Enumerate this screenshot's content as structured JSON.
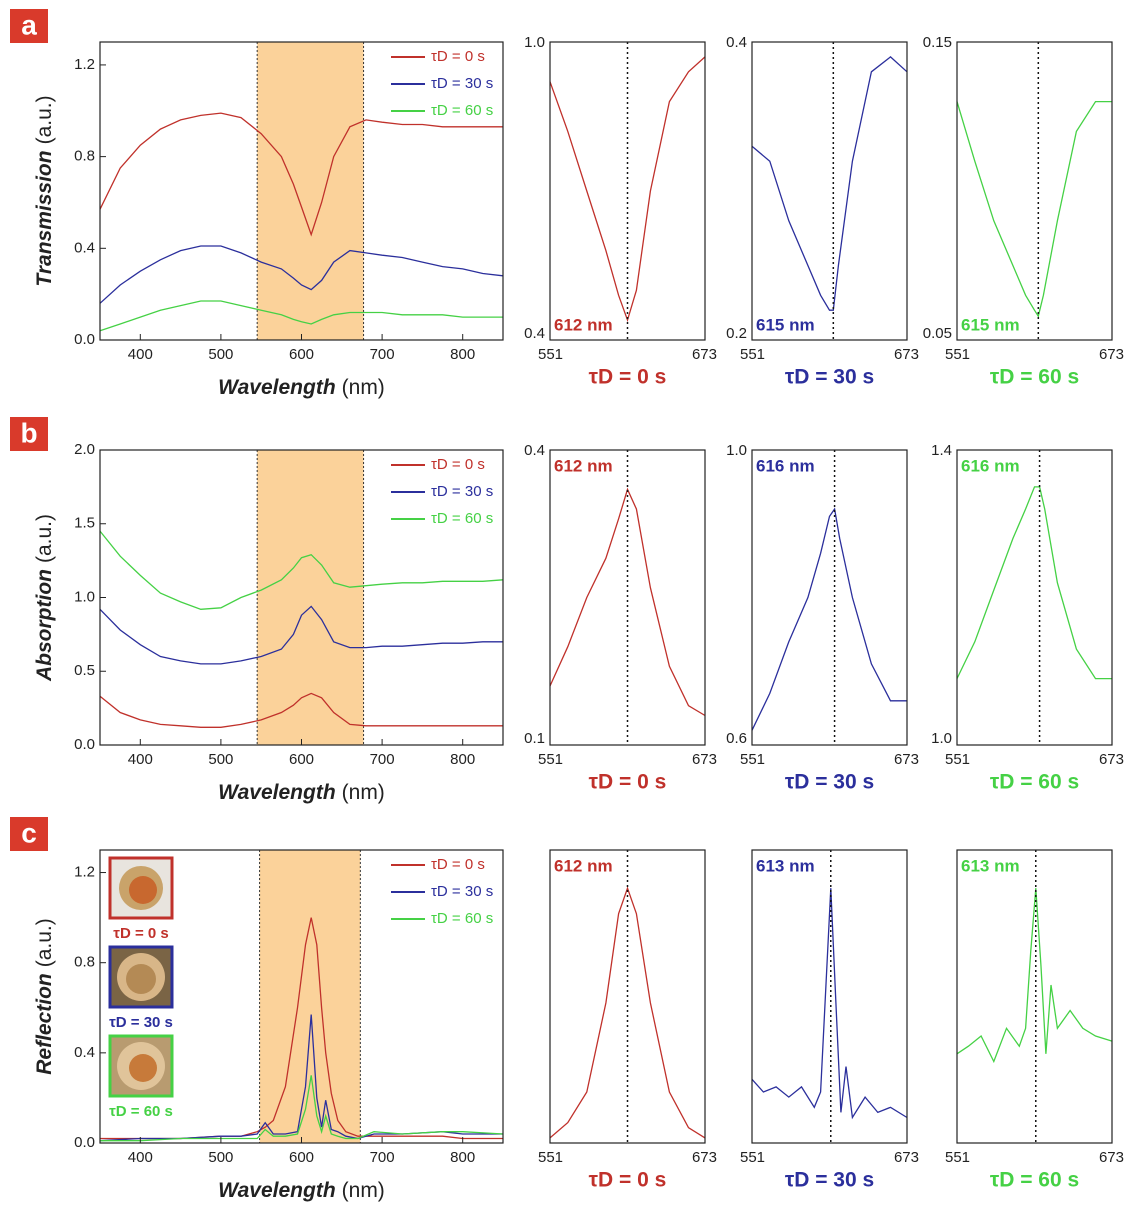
{
  "chart_data": [
    {
      "type": "line",
      "panel": "a",
      "xlabel": "Wavelength",
      "xlabel_unit": "(nm)",
      "ylabel": "Transmission",
      "ylabel_unit": "(a.u.)",
      "xlim": [
        350,
        850
      ],
      "xticks": [
        400,
        500,
        600,
        700,
        800
      ],
      "ylim": [
        0,
        1.3
      ],
      "yticks": [
        {
          "value": 0,
          "label": "0.0"
        },
        0.4,
        0.8,
        1.2
      ],
      "span": [
        545,
        677
      ],
      "x": [
        350,
        375,
        400,
        425,
        450,
        475,
        500,
        525,
        550,
        575,
        590,
        600,
        612,
        625,
        640,
        660,
        680,
        700,
        725,
        750,
        775,
        800,
        825,
        850
      ],
      "series": [
        {
          "name": "τD = 0 s",
          "color": "#c0312b",
          "values": [
            0.57,
            0.75,
            0.85,
            0.92,
            0.96,
            0.98,
            0.99,
            0.97,
            0.9,
            0.8,
            0.68,
            0.58,
            0.46,
            0.6,
            0.8,
            0.93,
            0.96,
            0.95,
            0.94,
            0.94,
            0.93,
            0.93,
            0.93,
            0.93
          ]
        },
        {
          "name": "τD = 30 s",
          "color": "#2b2f9c",
          "values": [
            0.16,
            0.24,
            0.3,
            0.35,
            0.39,
            0.41,
            0.41,
            0.38,
            0.34,
            0.31,
            0.27,
            0.24,
            0.22,
            0.26,
            0.34,
            0.39,
            0.38,
            0.37,
            0.36,
            0.34,
            0.32,
            0.31,
            0.29,
            0.28
          ]
        },
        {
          "name": "τD = 60 s",
          "color": "#45d145",
          "values": [
            0.04,
            0.07,
            0.1,
            0.13,
            0.15,
            0.17,
            0.17,
            0.15,
            0.13,
            0.11,
            0.09,
            0.08,
            0.07,
            0.09,
            0.11,
            0.12,
            0.12,
            0.12,
            0.11,
            0.11,
            0.11,
            0.1,
            0.1,
            0.1
          ]
        }
      ]
    },
    {
      "type": "line",
      "xlim": [
        551,
        673
      ],
      "xticks": [
        551,
        673
      ],
      "ylim": [
        0.4,
        1.0
      ],
      "yticks": [
        0.4,
        {
          "value": 1.0,
          "label": "1.0"
        }
      ],
      "peak": 612,
      "annotation": "612 nm",
      "annotation_pos": "bottom",
      "x": [
        551,
        565,
        580,
        595,
        605,
        612,
        619,
        630,
        645,
        660,
        673
      ],
      "series": [
        {
          "name": "τD = 0 s",
          "color": "#c0312b",
          "values": [
            0.92,
            0.82,
            0.7,
            0.58,
            0.49,
            0.44,
            0.5,
            0.7,
            0.88,
            0.94,
            0.97
          ]
        }
      ]
    },
    {
      "type": "line",
      "xlim": [
        551,
        673
      ],
      "xticks": [
        551,
        673
      ],
      "ylim": [
        0.2,
        0.4
      ],
      "yticks": [
        0.2,
        0.4
      ],
      "peak": 615,
      "annotation": "615 nm",
      "annotation_pos": "bottom",
      "x": [
        551,
        565,
        580,
        595,
        605,
        612,
        615,
        619,
        630,
        645,
        660,
        673
      ],
      "series": [
        {
          "name": "τD = 30 s",
          "color": "#2b2f9c",
          "values": [
            0.33,
            0.32,
            0.28,
            0.25,
            0.23,
            0.22,
            0.22,
            0.25,
            0.32,
            0.38,
            0.39,
            0.38
          ]
        }
      ]
    },
    {
      "type": "line",
      "xlim": [
        551,
        673
      ],
      "xticks": [
        551,
        673
      ],
      "ylim": [
        0.05,
        0.15
      ],
      "yticks": [
        0.05,
        0.15
      ],
      "peak": 615,
      "annotation": "615 nm",
      "annotation_pos": "bottom",
      "x": [
        551,
        565,
        580,
        595,
        605,
        612,
        615,
        619,
        630,
        645,
        660,
        673
      ],
      "series": [
        {
          "name": "τD = 60 s",
          "color": "#45d145",
          "values": [
            0.13,
            0.11,
            0.09,
            0.075,
            0.065,
            0.06,
            0.058,
            0.065,
            0.09,
            0.12,
            0.13,
            0.13
          ]
        }
      ]
    },
    {
      "type": "line",
      "panel": "b",
      "xlabel": "Wavelength",
      "xlabel_unit": "(nm)",
      "ylabel": "Absorption",
      "ylabel_unit": "(a.u.)",
      "xlim": [
        350,
        850
      ],
      "xticks": [
        400,
        500,
        600,
        700,
        800
      ],
      "ylim": [
        0,
        2.0
      ],
      "yticks": [
        {
          "value": 0,
          "label": "0.0"
        },
        0.5,
        {
          "value": 1,
          "label": "1.0"
        },
        1.5,
        {
          "value": 2,
          "label": "2.0"
        }
      ],
      "span": [
        545,
        677
      ],
      "x": [
        350,
        375,
        400,
        425,
        450,
        475,
        500,
        525,
        550,
        575,
        590,
        600,
        612,
        625,
        640,
        660,
        680,
        700,
        725,
        750,
        775,
        800,
        825,
        850
      ],
      "series": [
        {
          "name": "τD = 0 s",
          "color": "#c0312b",
          "values": [
            0.33,
            0.22,
            0.17,
            0.14,
            0.13,
            0.12,
            0.12,
            0.14,
            0.17,
            0.22,
            0.27,
            0.32,
            0.35,
            0.32,
            0.22,
            0.14,
            0.13,
            0.13,
            0.13,
            0.13,
            0.13,
            0.13,
            0.13,
            0.13
          ]
        },
        {
          "name": "τD = 30 s",
          "color": "#2b2f9c",
          "values": [
            0.92,
            0.78,
            0.68,
            0.6,
            0.57,
            0.55,
            0.55,
            0.57,
            0.6,
            0.65,
            0.75,
            0.88,
            0.94,
            0.85,
            0.7,
            0.66,
            0.66,
            0.67,
            0.67,
            0.68,
            0.69,
            0.69,
            0.7,
            0.7
          ]
        },
        {
          "name": "τD = 60 s",
          "color": "#45d145",
          "values": [
            1.45,
            1.28,
            1.15,
            1.03,
            0.97,
            0.92,
            0.93,
            1.0,
            1.05,
            1.12,
            1.2,
            1.27,
            1.29,
            1.22,
            1.1,
            1.07,
            1.08,
            1.09,
            1.1,
            1.1,
            1.11,
            1.11,
            1.11,
            1.12
          ]
        }
      ]
    },
    {
      "type": "line",
      "xlim": [
        551,
        673
      ],
      "xticks": [
        551,
        673
      ],
      "ylim": [
        0.1,
        0.4
      ],
      "yticks": [
        0.1,
        0.4
      ],
      "peak": 612,
      "annotation": "612 nm",
      "annotation_pos": "top",
      "x": [
        551,
        565,
        580,
        595,
        605,
        612,
        619,
        630,
        645,
        660,
        673
      ],
      "series": [
        {
          "name": "τD = 0 s",
          "color": "#c0312b",
          "values": [
            0.16,
            0.2,
            0.25,
            0.29,
            0.33,
            0.36,
            0.34,
            0.26,
            0.18,
            0.14,
            0.13
          ]
        }
      ]
    },
    {
      "type": "line",
      "xlim": [
        551,
        673
      ],
      "xticks": [
        551,
        673
      ],
      "ylim": [
        0.6,
        1.0
      ],
      "yticks": [
        0.6,
        {
          "value": 1.0,
          "label": "1.0"
        }
      ],
      "peak": 616,
      "annotation": "616 nm",
      "annotation_pos": "top",
      "x": [
        551,
        565,
        580,
        595,
        605,
        612,
        616,
        620,
        630,
        645,
        660,
        673
      ],
      "series": [
        {
          "name": "τD = 30 s",
          "color": "#2b2f9c",
          "values": [
            0.62,
            0.67,
            0.74,
            0.8,
            0.86,
            0.91,
            0.92,
            0.88,
            0.8,
            0.71,
            0.66,
            0.66
          ]
        }
      ]
    },
    {
      "type": "line",
      "xlim": [
        551,
        673
      ],
      "xticks": [
        551,
        673
      ],
      "ylim": [
        1.0,
        1.4
      ],
      "yticks": [
        {
          "value": 1.0,
          "label": "1.0"
        },
        1.4
      ],
      "peak": 616,
      "annotation": "616 nm",
      "annotation_pos": "top",
      "x": [
        551,
        565,
        580,
        595,
        605,
        612,
        616,
        620,
        630,
        645,
        660,
        673
      ],
      "series": [
        {
          "name": "τD = 60 s",
          "color": "#45d145",
          "values": [
            1.09,
            1.14,
            1.21,
            1.28,
            1.32,
            1.35,
            1.35,
            1.32,
            1.22,
            1.13,
            1.09,
            1.09
          ]
        }
      ]
    },
    {
      "type": "line",
      "panel": "c",
      "xlabel": "Wavelength",
      "xlabel_unit": "(nm)",
      "ylabel": "Reflection",
      "ylabel_unit": "(a.u.)",
      "xlim": [
        350,
        850
      ],
      "xticks": [
        400,
        500,
        600,
        700,
        800
      ],
      "ylim": [
        0,
        1.3
      ],
      "yticks": [
        {
          "value": 0,
          "label": "0.0"
        },
        0.4,
        0.8,
        1.2
      ],
      "span": [
        548,
        673
      ],
      "x": [
        350,
        400,
        450,
        500,
        525,
        545,
        555,
        565,
        580,
        595,
        605,
        612,
        619,
        625,
        630,
        637,
        645,
        655,
        670,
        690,
        725,
        775,
        800,
        850
      ],
      "series": [
        {
          "name": "τD = 0 s",
          "color": "#c0312b",
          "values": [
            0.02,
            0.02,
            0.02,
            0.03,
            0.03,
            0.05,
            0.07,
            0.1,
            0.25,
            0.6,
            0.88,
            1.0,
            0.88,
            0.6,
            0.4,
            0.22,
            0.1,
            0.05,
            0.03,
            0.03,
            0.03,
            0.03,
            0.02,
            0.02
          ]
        },
        {
          "name": "τD = 30 s",
          "color": "#2b2f9c",
          "values": [
            0.01,
            0.02,
            0.02,
            0.03,
            0.03,
            0.04,
            0.09,
            0.04,
            0.04,
            0.05,
            0.25,
            0.57,
            0.2,
            0.07,
            0.19,
            0.06,
            0.05,
            0.03,
            0.02,
            0.04,
            0.04,
            0.05,
            0.04,
            0.04
          ]
        },
        {
          "name": "τD = 60 s",
          "color": "#45d145",
          "values": [
            0.01,
            0.01,
            0.02,
            0.02,
            0.02,
            0.02,
            0.06,
            0.03,
            0.03,
            0.04,
            0.15,
            0.3,
            0.12,
            0.05,
            0.12,
            0.04,
            0.03,
            0.02,
            0.02,
            0.05,
            0.04,
            0.05,
            0.05,
            0.04
          ]
        }
      ]
    },
    {
      "type": "line",
      "xlim": [
        551,
        673
      ],
      "xticks": [
        551,
        673
      ],
      "ylim": [
        0,
        1.15
      ],
      "yticks": [],
      "peak": 612,
      "annotation": "612 nm",
      "annotation_pos": "top",
      "x": [
        551,
        565,
        580,
        595,
        605,
        612,
        619,
        630,
        645,
        660,
        673
      ],
      "series": [
        {
          "name": "τD = 0 s",
          "color": "#c0312b",
          "values": [
            0.02,
            0.08,
            0.2,
            0.55,
            0.9,
            1.0,
            0.9,
            0.55,
            0.2,
            0.06,
            0.02
          ]
        }
      ]
    },
    {
      "type": "line",
      "xlim": [
        551,
        673
      ],
      "xticks": [
        551,
        673
      ],
      "ylim": [
        0,
        1.15
      ],
      "yticks": [],
      "peak": 613,
      "annotation": "613 nm",
      "annotation_pos": "top",
      "x": [
        551,
        560,
        570,
        580,
        590,
        600,
        605,
        609,
        613,
        617,
        621,
        625,
        630,
        640,
        650,
        660,
        673
      ],
      "series": [
        {
          "name": "τD = 30 s",
          "color": "#2b2f9c",
          "values": [
            0.25,
            0.2,
            0.22,
            0.18,
            0.22,
            0.14,
            0.2,
            0.6,
            1.0,
            0.55,
            0.12,
            0.3,
            0.1,
            0.18,
            0.12,
            0.14,
            0.1
          ]
        }
      ]
    },
    {
      "type": "line",
      "xlim": [
        551,
        673
      ],
      "xticks": [
        551,
        673
      ],
      "ylim": [
        0,
        1.15
      ],
      "yticks": [],
      "peak": 613,
      "annotation": "613 nm",
      "annotation_pos": "top",
      "x": [
        551,
        560,
        570,
        580,
        590,
        600,
        605,
        609,
        613,
        617,
        621,
        625,
        630,
        640,
        650,
        660,
        673
      ],
      "series": [
        {
          "name": "τD = 60 s",
          "color": "#45d145",
          "values": [
            0.35,
            0.38,
            0.42,
            0.32,
            0.45,
            0.38,
            0.45,
            0.75,
            1.0,
            0.7,
            0.35,
            0.62,
            0.45,
            0.52,
            0.45,
            0.42,
            0.4
          ]
        }
      ]
    }
  ]
}
